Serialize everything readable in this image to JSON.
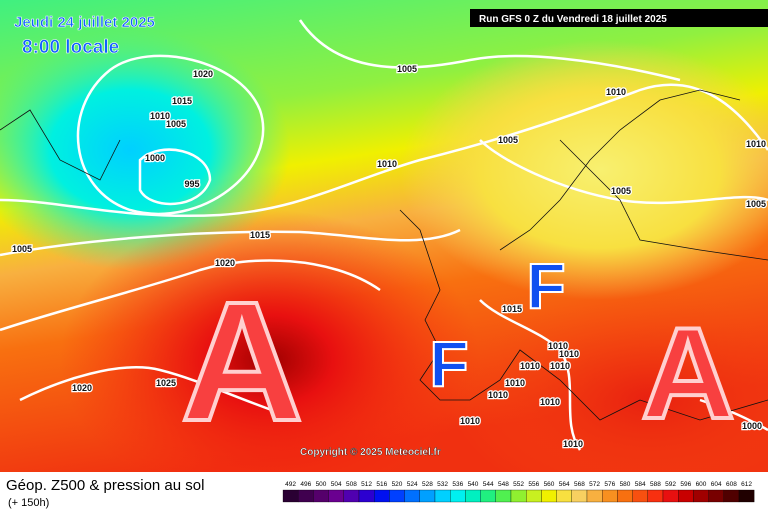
{
  "header": {
    "date": "Jeudi 24 juillet 2025",
    "time": "8:00 locale",
    "run": "Run GFS 0 Z du Vendredi 18 juillet 2025"
  },
  "copyright": "Copyright © 2025 Meteociel.fr",
  "footer": {
    "title": "Géop. Z500 & pression au sol",
    "lead": "(+ 150h)"
  },
  "isobar_labels": [
    "1020",
    "1015",
    "1010",
    "1005",
    "1000",
    "995",
    "1005",
    "1010",
    "1005",
    "1010",
    "1005",
    "1015",
    "1005",
    "1020",
    "1015",
    "1010",
    "1010",
    "1010",
    "1010",
    "1010",
    "1010",
    "1010",
    "1010",
    "1010",
    "1020",
    "1025",
    "1000",
    "1005",
    "1010"
  ],
  "pressure_centers": [
    "A",
    "A",
    "F",
    "F"
  ],
  "scale": [
    {
      "label": "492",
      "color": "#2a0033"
    },
    {
      "label": "496",
      "color": "#40004f"
    },
    {
      "label": "500",
      "color": "#55006b"
    },
    {
      "label": "504",
      "color": "#6a0090"
    },
    {
      "label": "508",
      "color": "#5000b0"
    },
    {
      "label": "512",
      "color": "#2c00d0"
    },
    {
      "label": "516",
      "color": "#0010f0"
    },
    {
      "label": "520",
      "color": "#0040ff"
    },
    {
      "label": "524",
      "color": "#0070ff"
    },
    {
      "label": "528",
      "color": "#00a0ff"
    },
    {
      "label": "532",
      "color": "#00d0ff"
    },
    {
      "label": "536",
      "color": "#00f0f0"
    },
    {
      "label": "540",
      "color": "#00f0c0"
    },
    {
      "label": "544",
      "color": "#20f080"
    },
    {
      "label": "548",
      "color": "#50f050"
    },
    {
      "label": "552",
      "color": "#90f030"
    },
    {
      "label": "556",
      "color": "#c8f020"
    },
    {
      "label": "560",
      "color": "#f0f000"
    },
    {
      "label": "564",
      "color": "#f8e040"
    },
    {
      "label": "568",
      "color": "#f8d060"
    },
    {
      "label": "572",
      "color": "#f8b040"
    },
    {
      "label": "576",
      "color": "#f89020"
    },
    {
      "label": "580",
      "color": "#f87010"
    },
    {
      "label": "584",
      "color": "#f85010"
    },
    {
      "label": "588",
      "color": "#f83010"
    },
    {
      "label": "592",
      "color": "#e81010"
    },
    {
      "label": "596",
      "color": "#c80000"
    },
    {
      "label": "600",
      "color": "#a00000"
    },
    {
      "label": "604",
      "color": "#780000"
    },
    {
      "label": "608",
      "color": "#500000"
    },
    {
      "label": "612",
      "color": "#200000"
    }
  ]
}
